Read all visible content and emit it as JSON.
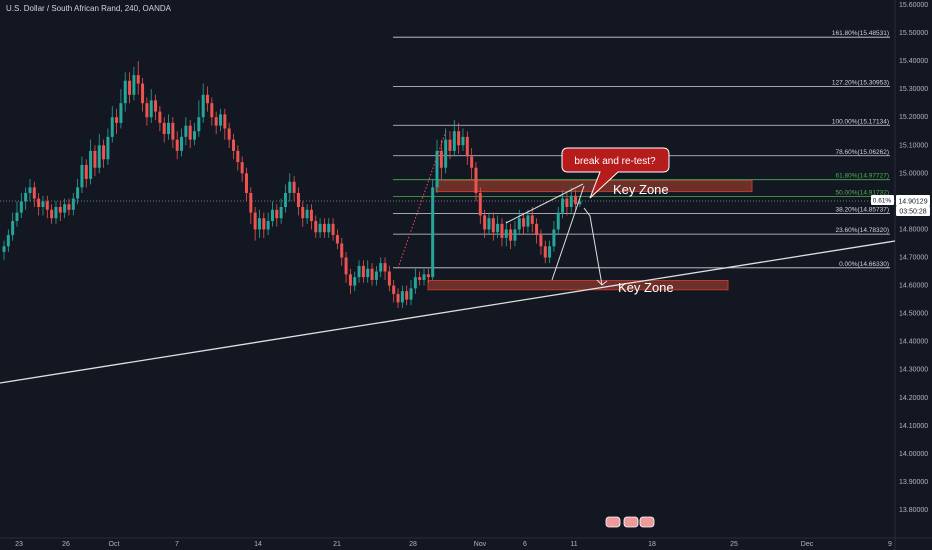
{
  "header": {
    "title": "U.S. Dollar / South African Rand, 240, OANDA"
  },
  "colors": {
    "background": "#131722",
    "up": "#26a69a",
    "down": "#ef5350",
    "fib_white": "#d1d4dc",
    "fib_green": "#4caf50",
    "zone_fill": "rgba(180,70,50,0.55)",
    "zone_stroke": "#c0392b",
    "trendline": "#e0e0e0",
    "price_label_bg": "#ffffff",
    "bubble_fill": "#b71c1c"
  },
  "chart_data": {
    "type": "candlestick",
    "symbol": "USDZAR",
    "timeframe": "240",
    "x_ticks": [
      "23",
      "26",
      "Oct",
      "7",
      "14",
      "21",
      "28",
      "Nov",
      "6",
      "11",
      "18",
      "25",
      "Dec",
      "9"
    ],
    "y_ticks": [
      "15.60000",
      "15.50000",
      "15.40000",
      "15.30000",
      "15.20000",
      "15.10000",
      "15.00000",
      "14.90000",
      "14.80000",
      "14.70000",
      "14.60000",
      "14.50000",
      "14.40000",
      "14.30000",
      "14.20000",
      "14.10000",
      "14.00000",
      "13.90000",
      "13.80000"
    ],
    "ylim": [
      13.775,
      15.61
    ],
    "fib_levels": [
      {
        "label": "161.80%(15.48531)",
        "value": 15.48531,
        "color": "white"
      },
      {
        "label": "127.20%(15.30953)",
        "value": 15.30953,
        "color": "white"
      },
      {
        "label": "100.00%(15.17134)",
        "value": 15.17134,
        "color": "white"
      },
      {
        "label": "78.60%(15.06262)",
        "value": 15.06262,
        "color": "white"
      },
      {
        "label": "61.80%(14.97727)",
        "value": 14.97727,
        "color": "green"
      },
      {
        "label": "50.00%(14.91732)",
        "value": 14.91732,
        "color": "green"
      },
      {
        "label": "38.20%(14.85737)",
        "value": 14.85737,
        "color": "white"
      },
      {
        "label": "23.60%(14.78320)",
        "value": 14.7832,
        "color": "white"
      },
      {
        "label": "0.00%(14.66330)",
        "value": 14.6633,
        "color": "white"
      }
    ],
    "current_price": {
      "label": "14.90129",
      "value": 14.90129,
      "change": "0.61%",
      "countdown": "03:50:28"
    },
    "zones": [
      {
        "label": "Key Zone",
        "top": 14.975,
        "bottom": 14.935
      },
      {
        "label": "Key Zone",
        "top": 14.618,
        "bottom": 14.585
      }
    ],
    "annotations": [
      "break and re-test?"
    ],
    "event_markers": [
      "",
      "",
      ""
    ],
    "candles": [
      [
        14.72,
        14.74,
        14.76,
        14.69
      ],
      [
        14.74,
        14.78,
        14.8,
        14.72
      ],
      [
        14.78,
        14.83,
        14.86,
        14.76
      ],
      [
        14.83,
        14.86,
        14.9,
        14.81
      ],
      [
        14.86,
        14.9,
        14.93,
        14.84
      ],
      [
        14.9,
        14.93,
        14.95,
        14.87
      ],
      [
        14.93,
        14.95,
        14.98,
        14.9
      ],
      [
        14.95,
        14.91,
        14.97,
        14.88
      ],
      [
        14.91,
        14.88,
        14.93,
        14.85
      ],
      [
        14.88,
        14.9,
        14.92,
        14.85
      ],
      [
        14.9,
        14.87,
        14.92,
        14.84
      ],
      [
        14.87,
        14.84,
        14.89,
        14.82
      ],
      [
        14.84,
        14.88,
        14.9,
        14.82
      ],
      [
        14.88,
        14.86,
        14.9,
        14.83
      ],
      [
        14.86,
        14.89,
        14.91,
        14.84
      ],
      [
        14.89,
        14.87,
        14.91,
        14.85
      ],
      [
        14.87,
        14.91,
        14.93,
        14.85
      ],
      [
        14.91,
        14.95,
        14.98,
        14.89
      ],
      [
        14.95,
        15.03,
        15.06,
        14.93
      ],
      [
        15.03,
        14.98,
        15.05,
        14.95
      ],
      [
        14.98,
        15.08,
        15.12,
        14.96
      ],
      [
        15.08,
        15.02,
        15.1,
        14.99
      ],
      [
        15.02,
        15.1,
        15.14,
        15.0
      ],
      [
        15.1,
        15.05,
        15.12,
        15.02
      ],
      [
        15.05,
        15.13,
        15.16,
        15.03
      ],
      [
        15.13,
        15.2,
        15.24,
        15.11
      ],
      [
        15.2,
        15.18,
        15.23,
        15.14
      ],
      [
        15.18,
        15.25,
        15.3,
        15.16
      ],
      [
        15.25,
        15.33,
        15.36,
        15.22
      ],
      [
        15.33,
        15.28,
        15.36,
        15.25
      ],
      [
        15.28,
        15.35,
        15.38,
        15.26
      ],
      [
        15.35,
        15.32,
        15.4,
        15.28
      ],
      [
        15.32,
        15.25,
        15.34,
        15.22
      ],
      [
        15.25,
        15.2,
        15.27,
        15.17
      ],
      [
        15.2,
        15.26,
        15.3,
        15.18
      ],
      [
        15.26,
        15.22,
        15.28,
        15.19
      ],
      [
        15.22,
        15.18,
        15.24,
        15.15
      ],
      [
        15.18,
        15.14,
        15.2,
        15.11
      ],
      [
        15.14,
        15.18,
        15.21,
        15.12
      ],
      [
        15.18,
        15.12,
        15.2,
        15.09
      ],
      [
        15.12,
        15.08,
        15.15,
        15.05
      ],
      [
        15.08,
        15.13,
        15.16,
        15.06
      ],
      [
        15.13,
        15.17,
        15.2,
        15.1
      ],
      [
        15.17,
        15.12,
        15.19,
        15.09
      ],
      [
        15.12,
        15.15,
        15.18,
        15.1
      ],
      [
        15.15,
        15.2,
        15.26,
        15.13
      ],
      [
        15.2,
        15.28,
        15.32,
        15.18
      ],
      [
        15.28,
        15.25,
        15.31,
        15.22
      ],
      [
        15.25,
        15.2,
        15.27,
        15.17
      ],
      [
        15.2,
        15.17,
        15.22,
        15.14
      ],
      [
        15.17,
        15.21,
        15.23,
        15.15
      ],
      [
        15.21,
        15.16,
        15.23,
        15.12
      ],
      [
        15.16,
        15.12,
        15.18,
        15.09
      ],
      [
        15.12,
        15.08,
        15.14,
        15.05
      ],
      [
        15.08,
        15.04,
        15.1,
        15.01
      ],
      [
        15.04,
        15.0,
        15.06,
        14.97
      ],
      [
        15.0,
        14.93,
        15.02,
        14.9
      ],
      [
        14.93,
        14.86,
        14.95,
        14.82
      ],
      [
        14.86,
        14.8,
        14.88,
        14.76
      ],
      [
        14.8,
        14.84,
        14.87,
        14.77
      ],
      [
        14.84,
        14.8,
        14.86,
        14.77
      ],
      [
        14.8,
        14.83,
        14.86,
        14.78
      ],
      [
        14.83,
        14.87,
        14.9,
        14.81
      ],
      [
        14.87,
        14.84,
        14.89,
        14.81
      ],
      [
        14.84,
        14.88,
        14.91,
        14.82
      ],
      [
        14.88,
        14.93,
        14.96,
        14.86
      ],
      [
        14.93,
        14.97,
        15.0,
        14.9
      ],
      [
        14.97,
        14.93,
        14.99,
        14.9
      ],
      [
        14.93,
        14.88,
        14.95,
        14.85
      ],
      [
        14.88,
        14.84,
        14.9,
        14.81
      ],
      [
        14.84,
        14.87,
        14.89,
        14.82
      ],
      [
        14.87,
        14.83,
        14.89,
        14.8
      ],
      [
        14.83,
        14.79,
        14.85,
        14.77
      ],
      [
        14.79,
        14.82,
        14.84,
        14.77
      ],
      [
        14.82,
        14.79,
        14.84,
        14.77
      ],
      [
        14.79,
        14.82,
        14.84,
        14.77
      ],
      [
        14.82,
        14.78,
        14.84,
        14.76
      ],
      [
        14.78,
        14.75,
        14.8,
        14.73
      ],
      [
        14.75,
        14.7,
        14.77,
        14.67
      ],
      [
        14.7,
        14.64,
        14.72,
        14.61
      ],
      [
        14.64,
        14.6,
        14.66,
        14.57
      ],
      [
        14.6,
        14.63,
        14.65,
        14.58
      ],
      [
        14.63,
        14.67,
        14.69,
        14.61
      ],
      [
        14.67,
        14.63,
        14.69,
        14.61
      ],
      [
        14.63,
        14.66,
        14.69,
        14.61
      ],
      [
        14.66,
        14.62,
        14.68,
        14.6
      ],
      [
        14.62,
        14.65,
        14.67,
        14.6
      ],
      [
        14.65,
        14.68,
        14.7,
        14.63
      ],
      [
        14.68,
        14.65,
        14.7,
        14.62
      ],
      [
        14.65,
        14.6,
        14.67,
        14.58
      ],
      [
        14.6,
        14.57,
        14.62,
        14.54
      ],
      [
        14.57,
        14.54,
        14.59,
        14.52
      ],
      [
        14.54,
        14.58,
        14.6,
        14.52
      ],
      [
        14.58,
        14.55,
        14.6,
        14.53
      ],
      [
        14.55,
        14.59,
        14.62,
        14.53
      ],
      [
        14.59,
        14.63,
        14.66,
        14.57
      ],
      [
        14.63,
        14.62,
        14.65,
        14.6
      ],
      [
        14.62,
        14.64,
        14.66,
        14.6
      ],
      [
        14.64,
        14.63,
        14.66,
        14.61
      ],
      [
        14.63,
        14.95,
        14.98,
        14.62
      ],
      [
        14.95,
        15.08,
        15.12,
        14.93
      ],
      [
        15.08,
        15.02,
        15.12,
        14.98
      ],
      [
        15.02,
        15.12,
        15.16,
        15.0
      ],
      [
        15.12,
        15.08,
        15.15,
        15.05
      ],
      [
        15.08,
        15.15,
        15.19,
        15.06
      ],
      [
        15.15,
        15.1,
        15.18,
        15.07
      ],
      [
        15.1,
        15.13,
        15.16,
        15.08
      ],
      [
        15.13,
        15.06,
        15.15,
        15.03
      ],
      [
        15.06,
        15.02,
        15.09,
        14.98
      ],
      [
        15.02,
        14.93,
        15.04,
        14.9
      ],
      [
        14.93,
        14.85,
        14.95,
        14.82
      ],
      [
        14.85,
        14.8,
        14.87,
        14.77
      ],
      [
        14.8,
        14.84,
        14.86,
        14.78
      ],
      [
        14.84,
        14.79,
        14.86,
        14.76
      ],
      [
        14.79,
        14.82,
        14.85,
        14.77
      ],
      [
        14.82,
        14.77,
        14.84,
        14.74
      ],
      [
        14.77,
        14.8,
        14.83,
        14.74
      ],
      [
        14.8,
        14.76,
        14.82,
        14.73
      ],
      [
        14.76,
        14.8,
        14.83,
        14.74
      ],
      [
        14.8,
        14.84,
        14.87,
        14.78
      ],
      [
        14.84,
        14.81,
        14.86,
        14.78
      ],
      [
        14.81,
        14.85,
        14.87,
        14.79
      ],
      [
        14.85,
        14.82,
        14.88,
        14.79
      ],
      [
        14.82,
        14.78,
        14.84,
        14.75
      ],
      [
        14.78,
        14.74,
        14.8,
        14.71
      ],
      [
        14.74,
        14.7,
        14.76,
        14.68
      ],
      [
        14.7,
        14.74,
        14.76,
        14.68
      ],
      [
        14.74,
        14.8,
        14.83,
        14.72
      ],
      [
        14.8,
        14.86,
        14.88,
        14.78
      ],
      [
        14.86,
        14.91,
        14.94,
        14.84
      ],
      [
        14.91,
        14.88,
        14.93,
        14.85
      ],
      [
        14.88,
        14.92,
        14.95,
        14.86
      ],
      [
        14.92,
        14.89,
        14.94,
        14.87
      ],
      [
        14.89,
        14.9,
        14.92,
        14.88
      ]
    ]
  }
}
